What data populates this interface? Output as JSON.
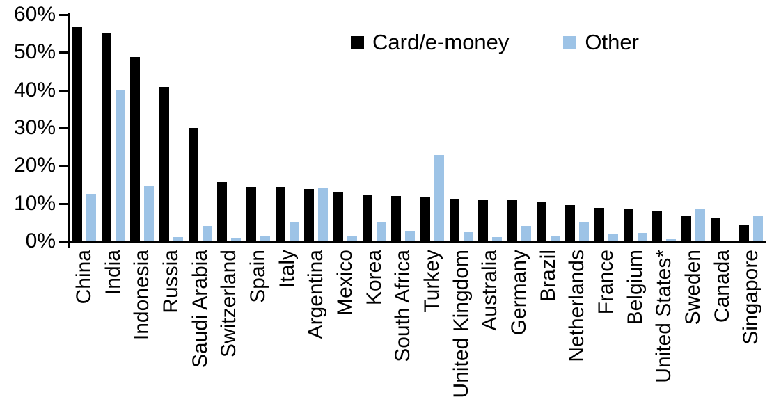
{
  "chart_data": {
    "type": "bar",
    "title": "",
    "xlabel": "",
    "ylabel": "",
    "ylim": [
      0,
      60
    ],
    "ytick_step": 10,
    "yticks": [
      "0%",
      "10%",
      "20%",
      "30%",
      "40%",
      "50%",
      "60%"
    ],
    "grid": false,
    "legend_position": "top-center",
    "background_color": "#ffffff",
    "axis_color": "#000000",
    "categories": [
      "China",
      "India",
      "Indonesia",
      "Russia",
      "Saudi Arabia",
      "Switzerland",
      "Spain",
      "Italy",
      "Argentina",
      "Mexico",
      "Korea",
      "South Africa",
      "Turkey",
      "United Kingdom",
      "Australia",
      "Germany",
      "Brazil",
      "Netherlands",
      "France",
      "Belgium",
      "United States*",
      "Sweden",
      "Canada",
      "Singapore"
    ],
    "series": [
      {
        "name": "Card/e-money",
        "color": "#000000",
        "values": [
          56.5,
          55.1,
          48.5,
          40.6,
          29.9,
          15.5,
          14.2,
          14.1,
          13.6,
          12.9,
          12.1,
          11.7,
          11.6,
          11.1,
          10.9,
          10.6,
          10.1,
          9.3,
          8.7,
          8.2,
          7.9,
          6.6,
          6.0,
          4.0
        ]
      },
      {
        "name": "Other",
        "color": "#9DC3E6",
        "values": [
          12.4,
          39.7,
          14.6,
          1.0,
          3.9,
          0.8,
          1.1,
          4.9,
          13.9,
          1.3,
          4.8,
          2.5,
          22.6,
          2.4,
          1.0,
          3.9,
          1.3,
          5.0,
          1.6,
          2.0,
          0.4,
          8.2,
          0.0,
          6.7
        ]
      }
    ]
  }
}
